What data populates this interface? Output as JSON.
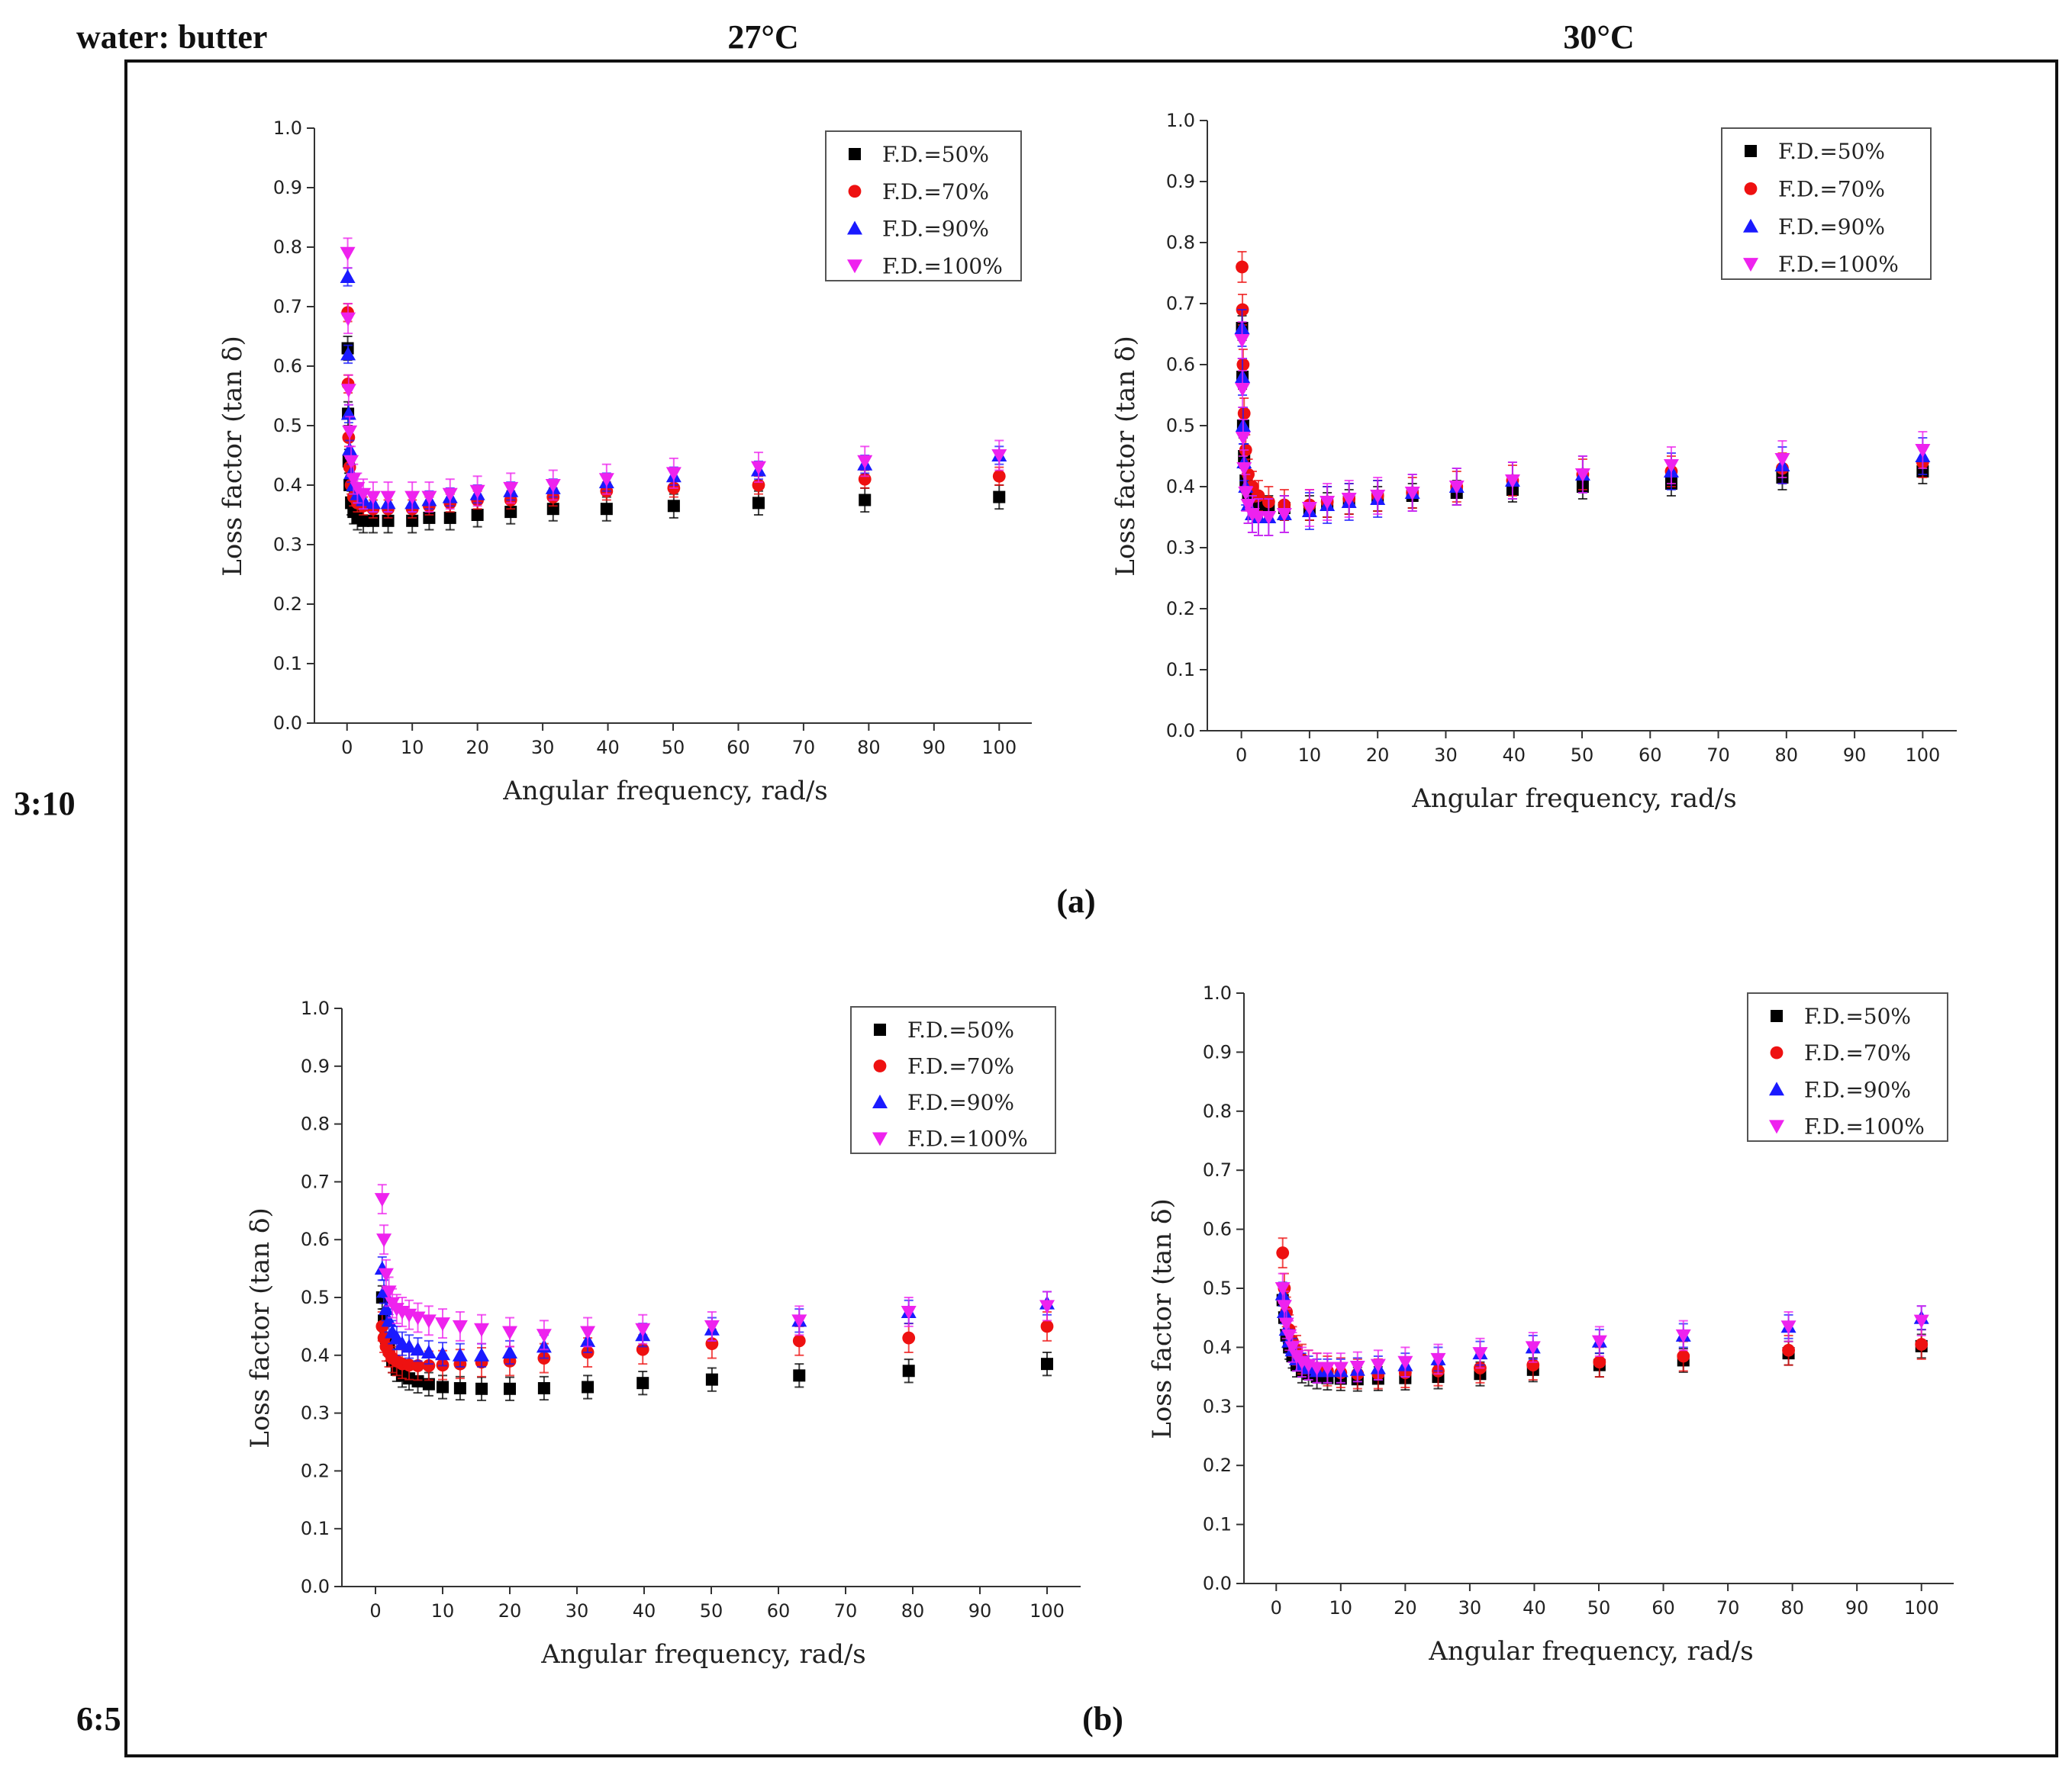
{
  "figure": {
    "header_left": "water: butter",
    "col_headers": [
      "27°C",
      "30°C"
    ],
    "row_labels": [
      "3:10",
      "6:5"
    ],
    "panel_labels": [
      "(a)",
      "(b)"
    ]
  },
  "colors": {
    "F.D.=50%": "#000000",
    "F.D.=70%": "#ee1111",
    "F.D.=90%": "#1a1aff",
    "F.D.=100%": "#ee22ee"
  },
  "marker_shapes": {
    "F.D.=50%": "square",
    "F.D.=70%": "circle",
    "F.D.=90%": "triangle-up",
    "F.D.=100%": "triangle-down"
  },
  "chart_data": [
    {
      "id": "a-27C",
      "type": "scatter",
      "title": "27°C, water:butter 3:10 (a)",
      "xlabel": "Angular frequency, rad/s",
      "ylabel": "Loss factor (tan δ)",
      "xlim": [
        -5,
        105
      ],
      "ylim": [
        0,
        1.0
      ],
      "xticks": [
        0,
        10,
        20,
        30,
        40,
        50,
        60,
        70,
        80,
        90,
        100
      ],
      "yticks": [
        0.0,
        0.1,
        0.2,
        0.3,
        0.4,
        0.5,
        0.6,
        0.7,
        0.8,
        0.9,
        1.0
      ],
      "legend_position": "top-right",
      "x": [
        0.1,
        0.16,
        0.25,
        0.4,
        0.63,
        1.0,
        1.6,
        2.5,
        4.0,
        6.3,
        10,
        12.6,
        15.8,
        20,
        25.1,
        31.6,
        39.8,
        50.1,
        63.1,
        79.4,
        100
      ],
      "series": [
        {
          "name": "F.D.=50%",
          "values": [
            0.63,
            0.52,
            0.44,
            0.4,
            0.37,
            0.355,
            0.345,
            0.34,
            0.34,
            0.34,
            0.34,
            0.345,
            0.345,
            0.35,
            0.355,
            0.36,
            0.36,
            0.365,
            0.37,
            0.375,
            0.38
          ],
          "error": 0.02
        },
        {
          "name": "F.D.=70%",
          "values": [
            0.69,
            0.57,
            0.48,
            0.43,
            0.4,
            0.38,
            0.37,
            0.365,
            0.36,
            0.36,
            0.36,
            0.365,
            0.37,
            0.375,
            0.375,
            0.38,
            0.39,
            0.395,
            0.4,
            0.41,
            0.415
          ],
          "error": 0.015
        },
        {
          "name": "F.D.=90%",
          "values": [
            0.75,
            0.62,
            0.52,
            0.46,
            0.42,
            0.4,
            0.385,
            0.375,
            0.37,
            0.37,
            0.37,
            0.375,
            0.38,
            0.385,
            0.39,
            0.395,
            0.405,
            0.415,
            0.425,
            0.435,
            0.45
          ],
          "error": 0.015
        },
        {
          "name": "F.D.=100%",
          "values": [
            0.79,
            0.68,
            0.56,
            0.49,
            0.44,
            0.41,
            0.395,
            0.385,
            0.38,
            0.38,
            0.38,
            0.38,
            0.385,
            0.39,
            0.395,
            0.4,
            0.41,
            0.42,
            0.43,
            0.44,
            0.45
          ],
          "error": 0.025
        }
      ]
    },
    {
      "id": "a-30C",
      "type": "scatter",
      "title": "30°C, water:butter 3:10 (a)",
      "xlabel": "Angular frequency, rad/s",
      "ylabel": "Loss factor (tan δ)",
      "xlim": [
        -5,
        105
      ],
      "ylim": [
        0,
        1.0
      ],
      "xticks": [
        0,
        10,
        20,
        30,
        40,
        50,
        60,
        70,
        80,
        90,
        100
      ],
      "yticks": [
        0.0,
        0.1,
        0.2,
        0.3,
        0.4,
        0.5,
        0.6,
        0.7,
        0.8,
        0.9,
        1.0
      ],
      "legend_position": "top-right",
      "x": [
        0.1,
        0.16,
        0.25,
        0.4,
        0.63,
        1.0,
        1.6,
        2.5,
        4.0,
        6.3,
        10,
        12.6,
        15.8,
        20,
        25.1,
        31.6,
        39.8,
        50.1,
        63.1,
        79.4,
        100
      ],
      "series": [
        {
          "name": "F.D.=50%",
          "values": [
            0.66,
            0.58,
            0.5,
            0.45,
            0.41,
            0.39,
            0.375,
            0.37,
            0.365,
            0.365,
            0.365,
            0.37,
            0.375,
            0.38,
            0.385,
            0.39,
            0.395,
            0.4,
            0.405,
            0.415,
            0.425
          ],
          "error": 0.02
        },
        {
          "name": "F.D.=70%",
          "values": [
            0.76,
            0.69,
            0.6,
            0.52,
            0.46,
            0.42,
            0.4,
            0.385,
            0.375,
            0.37,
            0.37,
            0.375,
            0.38,
            0.385,
            0.39,
            0.4,
            0.41,
            0.42,
            0.425,
            0.43,
            0.44
          ],
          "error": 0.025
        },
        {
          "name": "F.D.=90%",
          "values": [
            0.66,
            0.58,
            0.5,
            0.44,
            0.4,
            0.37,
            0.355,
            0.35,
            0.35,
            0.355,
            0.36,
            0.37,
            0.375,
            0.38,
            0.39,
            0.4,
            0.41,
            0.42,
            0.425,
            0.435,
            0.45
          ],
          "error": 0.03
        },
        {
          "name": "F.D.=100%",
          "values": [
            0.64,
            0.56,
            0.48,
            0.43,
            0.39,
            0.37,
            0.355,
            0.35,
            0.35,
            0.355,
            0.365,
            0.375,
            0.38,
            0.385,
            0.39,
            0.4,
            0.41,
            0.42,
            0.435,
            0.445,
            0.46
          ],
          "error": 0.03
        }
      ]
    },
    {
      "id": "b-27C",
      "type": "scatter",
      "title": "27°C, water:butter 6:5 (b)",
      "xlabel": "Angular frequency, rad/s",
      "ylabel": "Loss factor (tan δ)",
      "xlim": [
        -5,
        105
      ],
      "ylim": [
        0,
        1.0
      ],
      "xticks": [
        0,
        10,
        20,
        30,
        40,
        50,
        60,
        70,
        80,
        90,
        100
      ],
      "yticks": [
        0.0,
        0.1,
        0.2,
        0.3,
        0.4,
        0.5,
        0.6,
        0.7,
        0.8,
        0.9,
        1.0
      ],
      "legend_position": "top-right",
      "x": [
        1.0,
        1.26,
        1.58,
        2.0,
        2.51,
        3.16,
        3.98,
        5.01,
        6.31,
        7.94,
        10,
        12.6,
        15.8,
        20,
        25.1,
        31.6,
        39.8,
        50.1,
        63.1,
        79.4,
        100
      ],
      "series": [
        {
          "name": "F.D.=50%",
          "values": [
            0.5,
            0.46,
            0.43,
            0.41,
            0.39,
            0.375,
            0.365,
            0.36,
            0.355,
            0.35,
            0.345,
            0.343,
            0.342,
            0.342,
            0.343,
            0.345,
            0.352,
            0.358,
            0.365,
            0.373,
            0.385
          ],
          "error": 0.02
        },
        {
          "name": "F.D.=70%",
          "values": [
            0.45,
            0.43,
            0.415,
            0.405,
            0.395,
            0.39,
            0.385,
            0.383,
            0.382,
            0.382,
            0.383,
            0.385,
            0.388,
            0.39,
            0.395,
            0.405,
            0.41,
            0.42,
            0.425,
            0.43,
            0.45
          ],
          "error": 0.025
        },
        {
          "name": "F.D.=90%",
          "values": [
            0.55,
            0.51,
            0.48,
            0.46,
            0.44,
            0.43,
            0.42,
            0.415,
            0.41,
            0.405,
            0.402,
            0.4,
            0.4,
            0.405,
            0.415,
            0.425,
            0.435,
            0.445,
            0.46,
            0.475,
            0.49
          ],
          "error": 0.02
        },
        {
          "name": "F.D.=100%",
          "values": [
            0.67,
            0.6,
            0.54,
            0.51,
            0.49,
            0.48,
            0.475,
            0.47,
            0.465,
            0.46,
            0.455,
            0.45,
            0.445,
            0.44,
            0.435,
            0.44,
            0.445,
            0.45,
            0.46,
            0.475,
            0.485
          ],
          "error": 0.025
        }
      ]
    },
    {
      "id": "b-30C",
      "type": "scatter",
      "title": "30°C, water:butter 6:5 (b)",
      "xlabel": "Angular frequency, rad/s",
      "ylabel": "Loss factor (tan δ)",
      "xlim": [
        -5,
        105
      ],
      "ylim": [
        0,
        1.0
      ],
      "xticks": [
        0,
        10,
        20,
        30,
        40,
        50,
        60,
        70,
        80,
        90,
        100
      ],
      "yticks": [
        0.0,
        0.1,
        0.2,
        0.3,
        0.4,
        0.5,
        0.6,
        0.7,
        0.8,
        0.9,
        1.0
      ],
      "legend_position": "top-right",
      "x": [
        1.0,
        1.26,
        1.58,
        2.0,
        2.51,
        3.16,
        3.98,
        5.01,
        6.31,
        7.94,
        10,
        12.6,
        15.8,
        20,
        25.1,
        31.6,
        39.8,
        50.1,
        63.1,
        79.4,
        100
      ],
      "series": [
        {
          "name": "F.D.=50%",
          "values": [
            0.48,
            0.45,
            0.42,
            0.4,
            0.385,
            0.37,
            0.36,
            0.355,
            0.35,
            0.348,
            0.347,
            0.346,
            0.347,
            0.348,
            0.35,
            0.355,
            0.362,
            0.37,
            0.378,
            0.39,
            0.402
          ],
          "error": 0.02
        },
        {
          "name": "F.D.=70%",
          "values": [
            0.56,
            0.5,
            0.46,
            0.43,
            0.41,
            0.395,
            0.38,
            0.37,
            0.365,
            0.36,
            0.357,
            0.355,
            0.355,
            0.357,
            0.36,
            0.365,
            0.37,
            0.375,
            0.385,
            0.395,
            0.405
          ],
          "error": 0.025
        },
        {
          "name": "F.D.=90%",
          "values": [
            0.49,
            0.46,
            0.43,
            0.41,
            0.395,
            0.38,
            0.37,
            0.365,
            0.36,
            0.36,
            0.36,
            0.362,
            0.365,
            0.37,
            0.38,
            0.39,
            0.4,
            0.41,
            0.42,
            0.435,
            0.45
          ],
          "error": 0.02
        },
        {
          "name": "F.D.=100%",
          "values": [
            0.5,
            0.47,
            0.44,
            0.42,
            0.4,
            0.385,
            0.375,
            0.37,
            0.365,
            0.365,
            0.365,
            0.367,
            0.37,
            0.375,
            0.38,
            0.39,
            0.4,
            0.41,
            0.42,
            0.435,
            0.445
          ],
          "error": 0.025
        }
      ]
    }
  ]
}
